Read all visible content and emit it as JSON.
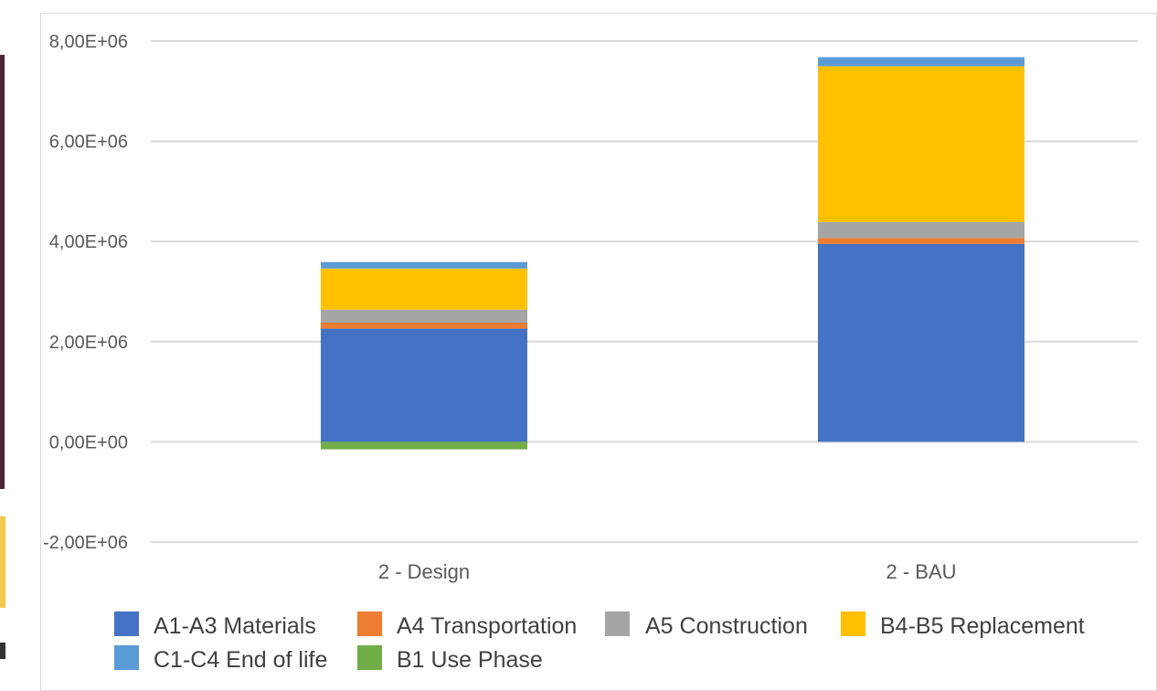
{
  "chart_data": {
    "type": "bar",
    "stacked": true,
    "categories": [
      "2 - Design",
      "2 - BAU"
    ],
    "series": [
      {
        "name": "A1-A3 Materials",
        "color": "#4472c4",
        "values": [
          2260000,
          3950000
        ]
      },
      {
        "name": "A4 Transportation",
        "color": "#ed7d31",
        "values": [
          120000,
          120000
        ]
      },
      {
        "name": "A5 Construction",
        "color": "#a5a5a5",
        "values": [
          260000,
          320000
        ]
      },
      {
        "name": "B4-B5 Replacement",
        "color": "#ffc000",
        "values": [
          820000,
          3110000
        ]
      },
      {
        "name": "C1-C4 End of life",
        "color": "#5b9bd5",
        "values": [
          130000,
          180000
        ]
      },
      {
        "name": "B1 Use Phase",
        "color": "#70ad47",
        "values": [
          -150000,
          0
        ]
      }
    ],
    "yticks": [
      "8,00E+06",
      "6,00E+06",
      "4,00E+06",
      "2,00E+06",
      "0,00E+00",
      "-2,00E+06"
    ],
    "ylim": [
      -2000000,
      8000000
    ],
    "grid": true,
    "legend": "bottom",
    "title": "",
    "xlabel": "",
    "ylabel": ""
  }
}
